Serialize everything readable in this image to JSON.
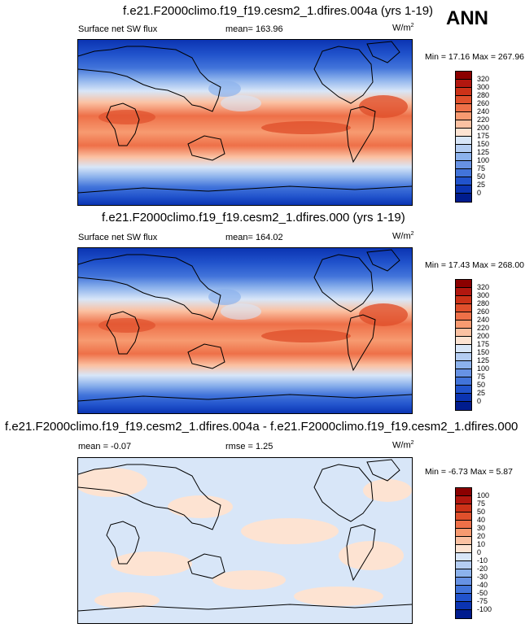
{
  "header": {
    "season": "ANN"
  },
  "panels": [
    {
      "title": "f.e21.F2000climo.f19_f19.cesm2_1.dfires.004a (yrs 1-19)",
      "variable": "Surface net SW flux",
      "stat_text": "mean=  163.96",
      "units": "W/m",
      "units_sup": "2",
      "minmax": "Min =  17.16 Max = 267.96",
      "colorbar": {
        "labels": [
          "320",
          "300",
          "280",
          "260",
          "240",
          "220",
          "200",
          "175",
          "150",
          "125",
          "100",
          "75",
          "50",
          "25",
          "0"
        ],
        "colors": [
          "#8b0000",
          "#b2170f",
          "#cc3218",
          "#e0502c",
          "#ee7048",
          "#f79a70",
          "#fbc1a2",
          "#fde3d2",
          "#d8e6f8",
          "#b4cdf2",
          "#8cb2ec",
          "#6792e4",
          "#4274da",
          "#2153cc",
          "#0b34b2",
          "#001c8e"
        ]
      }
    },
    {
      "title": "f.e21.F2000climo.f19_f19.cesm2_1.dfires.000 (yrs 1-19)",
      "variable": "Surface net SW flux",
      "stat_text": "mean=  164.02",
      "units": "W/m",
      "units_sup": "2",
      "minmax": "Min =  17.43 Max = 268.00",
      "colorbar": {
        "labels": [
          "320",
          "300",
          "280",
          "260",
          "240",
          "220",
          "200",
          "175",
          "150",
          "125",
          "100",
          "75",
          "50",
          "25",
          "0"
        ],
        "colors": [
          "#8b0000",
          "#b2170f",
          "#cc3218",
          "#e0502c",
          "#ee7048",
          "#f79a70",
          "#fbc1a2",
          "#fde3d2",
          "#d8e6f8",
          "#b4cdf2",
          "#8cb2ec",
          "#6792e4",
          "#4274da",
          "#2153cc",
          "#0b34b2",
          "#001c8e"
        ]
      }
    },
    {
      "title": "f.e21.F2000climo.f19_f19.cesm2_1.dfires.004a - f.e21.F2000climo.f19_f19.cesm2_1.dfires.000",
      "stat_left": "mean =  -0.07",
      "stat_mid": "rmse =   1.25",
      "units": "W/m",
      "units_sup": "2",
      "minmax": "Min =  -6.73 Max =   5.87",
      "colorbar": {
        "labels": [
          "100",
          "75",
          "50",
          "40",
          "30",
          "20",
          "10",
          "0",
          "-10",
          "-20",
          "-30",
          "-40",
          "-50",
          "-75",
          "-100"
        ],
        "colors": [
          "#8b0000",
          "#b2170f",
          "#cc3218",
          "#e0502c",
          "#ee7048",
          "#f79a70",
          "#fbc1a2",
          "#fde3d2",
          "#d8e6f8",
          "#b4cdf2",
          "#8cb2ec",
          "#6792e4",
          "#4274da",
          "#2153cc",
          "#0b34b2",
          "#001c8e"
        ]
      }
    }
  ]
}
